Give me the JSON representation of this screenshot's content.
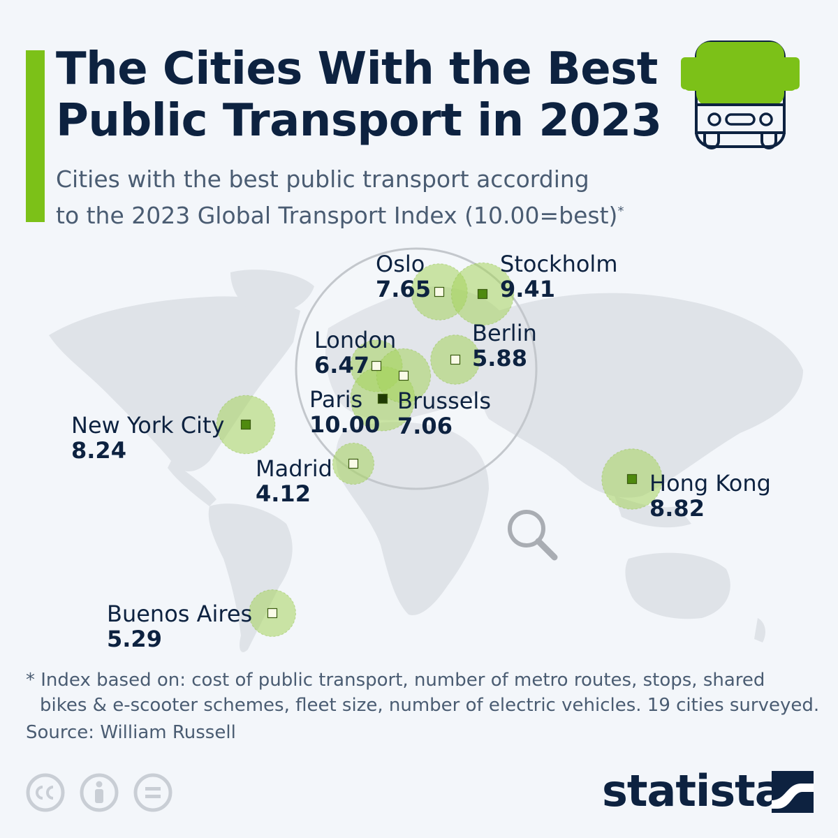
{
  "header": {
    "title_line1": "The Cities With the Best",
    "title_line2": "Public Transport in 2023",
    "subtitle_line1": "Cities with the best public transport according",
    "subtitle_line2": "to the 2023 Global Transport Index (10.00=best)",
    "subtitle_mark": "*",
    "icon": "bus-icon"
  },
  "map_data": {
    "type": "bubble-map",
    "value_scale_max": 10.0,
    "colors": {
      "bubble_fill": "#a6d45d",
      "marker_light": "#fafbe8",
      "marker_dark": "#4f8a0f",
      "marker_darkest": "#1f3a05",
      "accent": "#7cc118"
    },
    "cities": [
      {
        "name": "Oslo",
        "value": "7.65"
      },
      {
        "name": "Stockholm",
        "value": "9.41"
      },
      {
        "name": "London",
        "value": "6.47"
      },
      {
        "name": "Berlin",
        "value": "5.88"
      },
      {
        "name": "Paris",
        "value": "10.00"
      },
      {
        "name": "Brussels",
        "value": "7.06"
      },
      {
        "name": "New York City",
        "value": "8.24"
      },
      {
        "name": "Madrid",
        "value": "4.12"
      },
      {
        "name": "Hong Kong",
        "value": "8.82"
      },
      {
        "name": "Buenos Aires",
        "value": "5.29"
      }
    ],
    "magnifier_icon": "magnifier-icon"
  },
  "footer": {
    "note_line1": "* Index based on: cost of public transport, number of metro routes, stops, shared",
    "note_line2": "bikes & e-scooter schemes, fleet size, number of electric vehicles. 19 cities surveyed.",
    "source": "Source: William Russell",
    "brand": "statista",
    "license_icons": [
      "cc-icon",
      "attribution-icon",
      "no-derivatives-icon"
    ]
  }
}
